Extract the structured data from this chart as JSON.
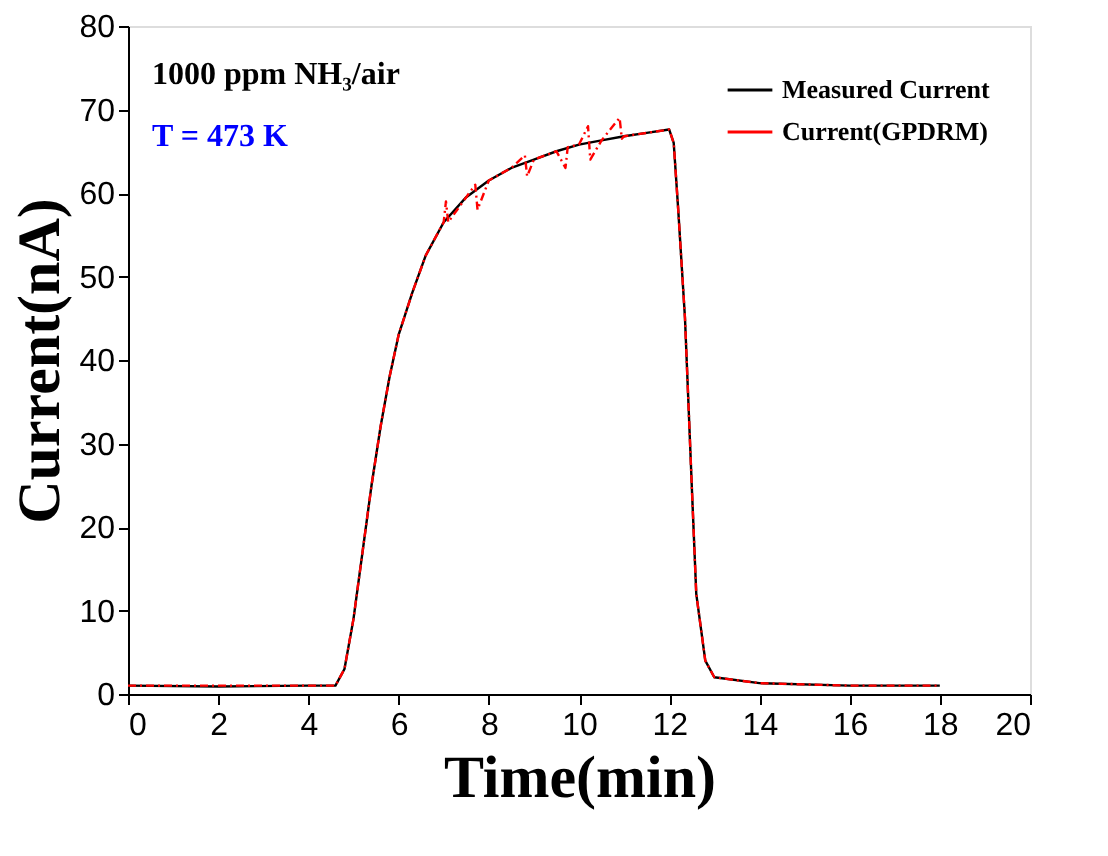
{
  "chart_data": {
    "type": "line",
    "xlabel": "Time(min)",
    "ylabel": "Current(nA)",
    "annotations": [
      "1000 ppm NH₃/air",
      "T = 473 K"
    ],
    "xlim": [
      0,
      20
    ],
    "ylim": [
      0,
      80
    ],
    "xticks": [
      0,
      2,
      4,
      6,
      8,
      10,
      12,
      14,
      16,
      18,
      20
    ],
    "yticks": [
      0,
      10,
      20,
      30,
      40,
      50,
      60,
      70,
      80
    ],
    "legend": "top right",
    "grid": false,
    "marker": "none",
    "series": [
      {
        "name": "Measured Current",
        "color": "#000000",
        "line_style": "solid",
        "x": [
          0,
          2,
          4,
          4.6,
          4.8,
          5.0,
          5.2,
          5.4,
          5.6,
          5.8,
          6.0,
          6.3,
          6.6,
          7.0,
          7.5,
          8,
          8.5,
          9,
          9.5,
          10,
          10.5,
          11,
          11.5,
          12,
          12.1,
          12.2,
          12.35,
          12.5,
          12.6,
          12.8,
          13,
          14,
          16,
          18
        ],
        "values": [
          1,
          0.9,
          1,
          1,
          3,
          9,
          17,
          25,
          32,
          38,
          43,
          48,
          52.5,
          56.5,
          59.5,
          61.5,
          63,
          64,
          65,
          65.8,
          66.3,
          66.8,
          67.2,
          67.6,
          66,
          58,
          45,
          25,
          12,
          4,
          2,
          1.3,
          1,
          1
        ]
      },
      {
        "name": "Current(GPDRM)",
        "color": "#ff0000",
        "line_style": "dashdot",
        "x": [
          0,
          2,
          4,
          4.6,
          4.8,
          5.0,
          5.2,
          5.4,
          5.6,
          5.8,
          6.0,
          6.3,
          6.6,
          7.0,
          7.05,
          7.1,
          7.5,
          7.7,
          7.75,
          8,
          8.5,
          8.8,
          8.85,
          9,
          9.5,
          9.7,
          9.75,
          10,
          10.2,
          10.25,
          10.5,
          10.9,
          10.95,
          11,
          11.5,
          12,
          12.1,
          12.2,
          12.35,
          12.5,
          12.6,
          12.8,
          13,
          14,
          16,
          18
        ],
        "values": [
          1,
          1,
          1,
          1,
          3,
          9,
          17,
          25,
          32,
          38,
          43,
          48,
          52.5,
          56.5,
          59,
          56.5,
          59.5,
          61,
          58,
          61.5,
          63,
          64.5,
          62,
          64,
          65,
          63,
          65.5,
          65.8,
          68,
          64,
          66.3,
          69,
          66.5,
          66.8,
          67.2,
          67.6,
          66,
          58,
          45,
          25,
          12,
          4,
          2,
          1.3,
          1,
          1
        ]
      }
    ]
  }
}
